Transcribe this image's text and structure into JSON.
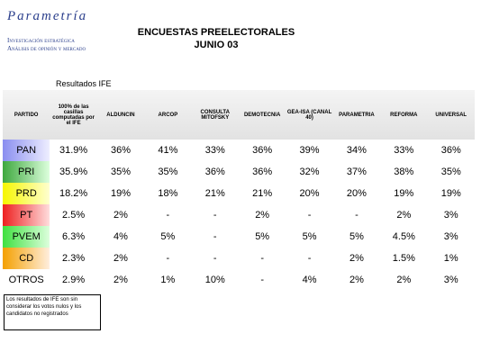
{
  "logo": {
    "name": "Parametría",
    "line1": "Investigación estratégica",
    "line2": "Análisis de opinión y mercado"
  },
  "title": {
    "line1": "ENCUESTAS PREELECTORALES",
    "line2": "JUNIO 03"
  },
  "table": {
    "caption": "Resultados IFE",
    "headers": [
      "PARTIDO",
      "100% de las casillas computadas por el IFE",
      "ALDUNCIN",
      "ARCOP",
      "CONSULTA MITOFSKY",
      "DEMOTECNIA",
      "GEA-ISA (CANAL 40)",
      "PARAMETRIA",
      "REFORMA",
      "UNIVERSAL"
    ],
    "rows": [
      [
        "PAN",
        "31.9%",
        "36%",
        "41%",
        "33%",
        "36%",
        "39%",
        "34%",
        "33%",
        "36%"
      ],
      [
        "PRI",
        "35.9%",
        "35%",
        "35%",
        "36%",
        "36%",
        "32%",
        "37%",
        "38%",
        "35%"
      ],
      [
        "PRD",
        "18.2%",
        "19%",
        "18%",
        "21%",
        "21%",
        "20%",
        "20%",
        "19%",
        "19%"
      ],
      [
        "PT",
        "2.5%",
        "2%",
        "-",
        "-",
        "2%",
        "-",
        "-",
        "2%",
        "3%"
      ],
      [
        "PVEM",
        "6.3%",
        "4%",
        "5%",
        "-",
        "5%",
        "5%",
        "5%",
        "4.5%",
        "3%"
      ],
      [
        "CD",
        "2.3%",
        "2%",
        "-",
        "-",
        "-",
        "-",
        "2%",
        "1.5%",
        "1%"
      ],
      [
        "OTROS",
        "2.9%",
        "2%",
        "1%",
        "10%",
        "-",
        "4%",
        "2%",
        "2%",
        "3%"
      ]
    ]
  },
  "footnote": "Los resultados de IFE son sin considerar los votos nulos y los candidatos no registrados"
}
